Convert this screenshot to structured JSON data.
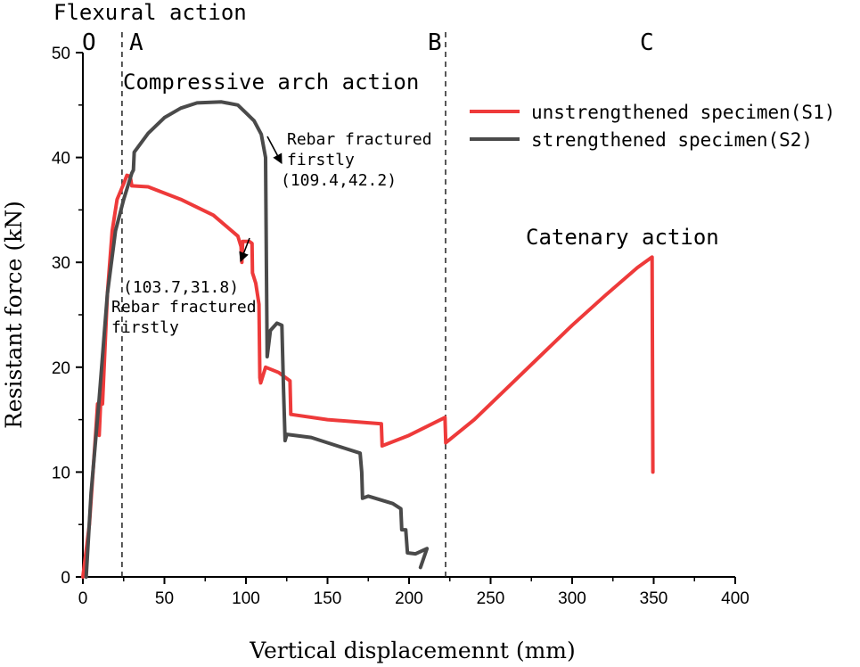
{
  "chart_data": {
    "type": "line",
    "xlabel": "Vertical displacemennt (mm)",
    "ylabel": "Resistant force (kN)",
    "xlim": [
      0,
      400
    ],
    "ylim": [
      0,
      50
    ],
    "xticks": [
      0,
      50,
      100,
      150,
      200,
      250,
      300,
      350,
      400
    ],
    "yticks": [
      0,
      10,
      20,
      30,
      40,
      50
    ],
    "grid": false,
    "legend_position": "top-right",
    "series": [
      {
        "name": "unstrengthened specimen(S1)",
        "color": "#ee3a3a",
        "points": [
          [
            0,
            0
          ],
          [
            4,
            5
          ],
          [
            8,
            14
          ],
          [
            9,
            16.5
          ],
          [
            10,
            13.5
          ],
          [
            11,
            17
          ],
          [
            12,
            16.5
          ],
          [
            15,
            27
          ],
          [
            18,
            33
          ],
          [
            21,
            36
          ],
          [
            25,
            37.5
          ],
          [
            27,
            38.3
          ],
          [
            29,
            38.2
          ],
          [
            30,
            37.3
          ],
          [
            40,
            37.2
          ],
          [
            60,
            36
          ],
          [
            80,
            34.5
          ],
          [
            95,
            32.5
          ],
          [
            97,
            31.5
          ],
          [
            97.5,
            30
          ],
          [
            98,
            32
          ],
          [
            102,
            32
          ],
          [
            103.7,
            31.8
          ],
          [
            104,
            29
          ],
          [
            106,
            28
          ],
          [
            108,
            26
          ],
          [
            108.5,
            19
          ],
          [
            109,
            18.5
          ],
          [
            112,
            20
          ],
          [
            120,
            19.5
          ],
          [
            127,
            18.7
          ],
          [
            127.5,
            15.5
          ],
          [
            150,
            15
          ],
          [
            183,
            14.6
          ],
          [
            183.5,
            12.5
          ],
          [
            200,
            13.5
          ],
          [
            222,
            15.2
          ],
          [
            222.5,
            12.8
          ],
          [
            240,
            15
          ],
          [
            260,
            18
          ],
          [
            280,
            21
          ],
          [
            300,
            24
          ],
          [
            320,
            26.8
          ],
          [
            340,
            29.5
          ],
          [
            349,
            30.5
          ],
          [
            349.5,
            10
          ]
        ]
      },
      {
        "name": "strengthened specimen(S2)",
        "color": "#4a4a4a",
        "points": [
          [
            2,
            0
          ],
          [
            5,
            8
          ],
          [
            10,
            17
          ],
          [
            15,
            27
          ],
          [
            20,
            33
          ],
          [
            25,
            36
          ],
          [
            30,
            38.5
          ],
          [
            31,
            38.8
          ],
          [
            31.5,
            40.5
          ],
          [
            40,
            42.3
          ],
          [
            50,
            43.8
          ],
          [
            60,
            44.7
          ],
          [
            70,
            45.2
          ],
          [
            85,
            45.3
          ],
          [
            95,
            45
          ],
          [
            105,
            43.5
          ],
          [
            109.4,
            42.2
          ],
          [
            112,
            40
          ],
          [
            112.5,
            30
          ],
          [
            113,
            21
          ],
          [
            115,
            23.5
          ],
          [
            119,
            24.2
          ],
          [
            122,
            24
          ],
          [
            123,
            18
          ],
          [
            124,
            13
          ],
          [
            125,
            13.6
          ],
          [
            140,
            13.3
          ],
          [
            160,
            12.3
          ],
          [
            170,
            11.8
          ],
          [
            171,
            10
          ],
          [
            171.5,
            7.5
          ],
          [
            175,
            7.7
          ],
          [
            190,
            7
          ],
          [
            195,
            6.5
          ],
          [
            195.5,
            4.5
          ],
          [
            198,
            4.5
          ],
          [
            199,
            2.3
          ],
          [
            204,
            2.2
          ],
          [
            211,
            2.7
          ],
          [
            207,
            0.9
          ]
        ]
      }
    ],
    "reference_lines": [
      24,
      222.4
    ],
    "stage_labels": [
      "O",
      "A",
      "B",
      "C"
    ],
    "annotations": {
      "flexural": "Flexural action",
      "compressive": "Compressive arch action",
      "catenary": "Catenary action",
      "s2_fracture_text1": "Rebar fractured",
      "s2_fracture_text2": "firstly",
      "s2_fracture_point": "(109.4,42.2)",
      "s1_fracture_point": "(103.7,31.8)",
      "s1_fracture_text1": "Rebar fractured",
      "s1_fracture_text2": "firstly"
    }
  }
}
